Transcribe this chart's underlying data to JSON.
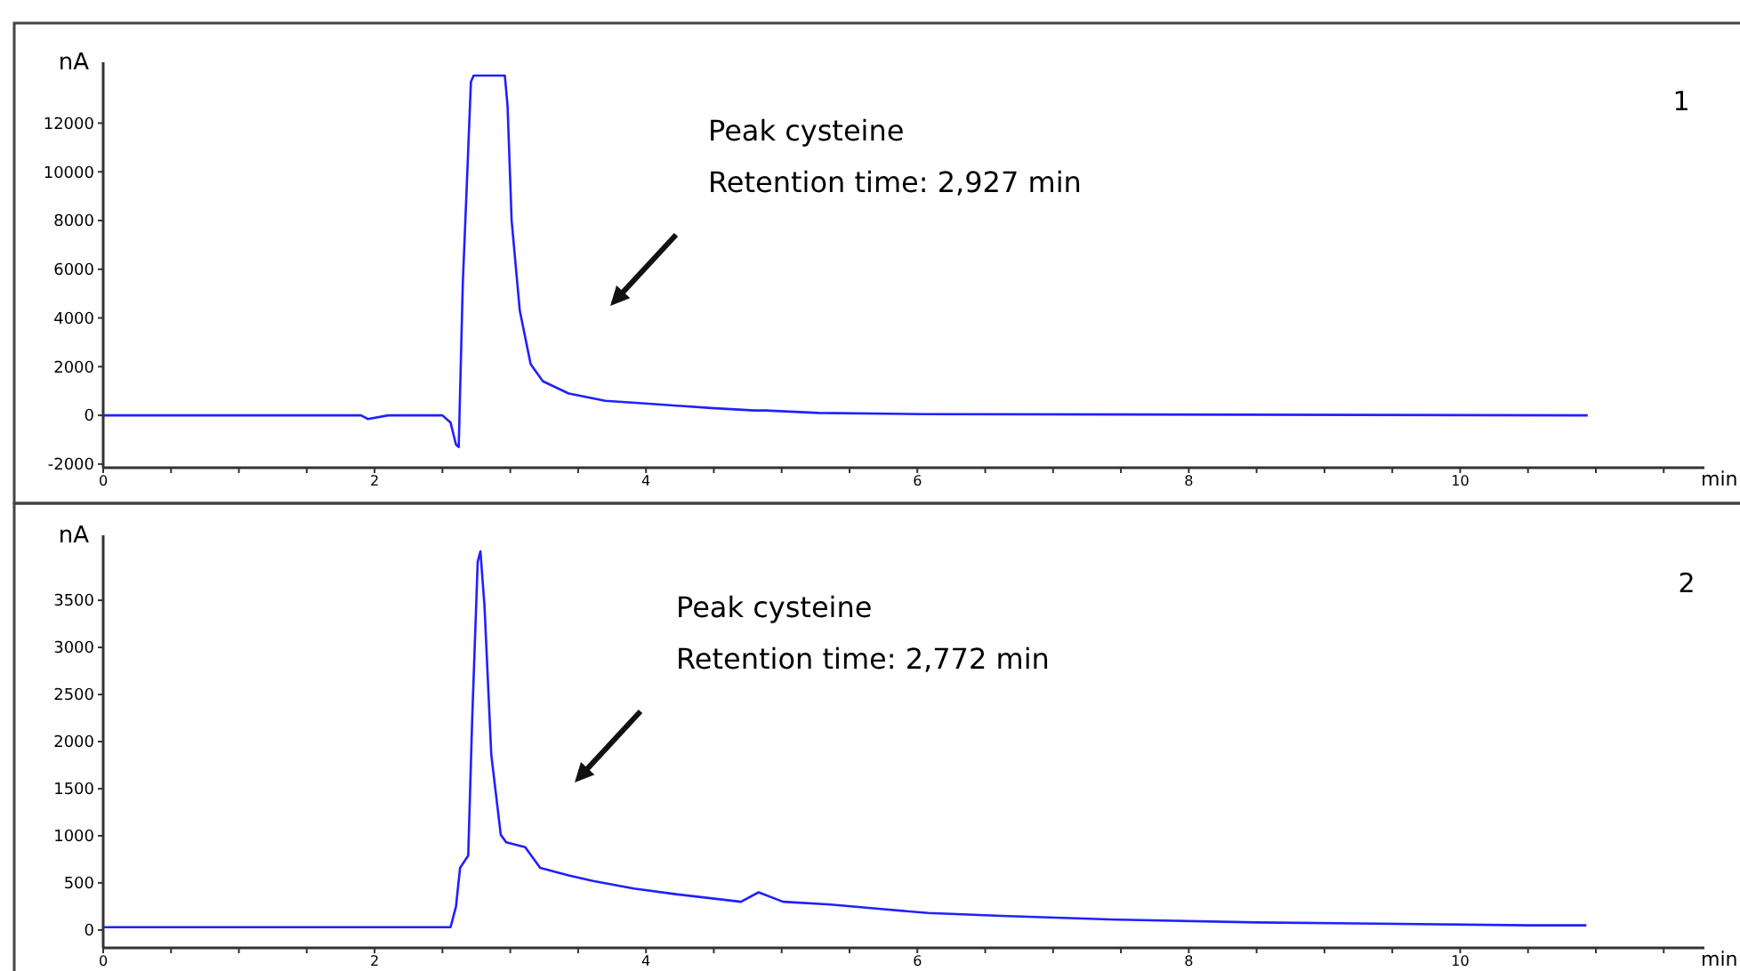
{
  "chart_data": [
    {
      "type": "line",
      "xlabel": "min",
      "ylabel": "nA",
      "annotations": [
        "1",
        "Peak cysteine",
        "Retention time: 2,927 min"
      ],
      "xlim": [
        0,
        11.8
      ],
      "xticks": [
        0,
        {
          "value": 0.5,
          "label": null
        },
        2,
        {
          "value": 1,
          "label": null
        },
        {
          "value": 1.5,
          "label": null
        },
        {
          "value": 2.5,
          "label": null
        },
        {
          "value": 3,
          "label": null
        },
        {
          "value": 3.5,
          "label": null
        },
        4,
        {
          "value": 4.5,
          "label": null
        },
        {
          "value": 5,
          "label": null
        },
        {
          "value": 5.5,
          "label": null
        },
        6,
        {
          "value": 6.5,
          "label": null
        },
        {
          "value": 7,
          "label": null
        },
        {
          "value": 7.5,
          "label": null
        },
        8,
        {
          "value": 8.5,
          "label": null
        },
        {
          "value": 9,
          "label": null
        },
        {
          "value": 9.5,
          "label": null
        },
        10,
        {
          "value": 10.5,
          "label": null
        },
        {
          "value": 11,
          "label": null
        },
        {
          "value": 11.5,
          "label": null
        }
      ],
      "ylim": [
        -2150,
        14500
      ],
      "yticks": [
        -2000,
        0,
        2000,
        4000,
        6000,
        8000,
        10000,
        12000
      ],
      "grid": false,
      "marker": "none",
      "line_style": "solid",
      "series": [
        {
          "color": "#2020ff",
          "x": [
            0,
            1.9,
            1.95,
            2.1,
            2.5,
            2.56,
            2.6,
            2.62,
            2.65,
            2.69,
            2.71,
            2.73,
            2.96,
            2.98,
            3.01,
            3.07,
            3.15,
            3.24,
            3.43,
            3.7,
            4.09,
            4.48,
            4.8,
            4.88,
            5.27,
            6.06,
            10.94
          ],
          "values": [
            0,
            0,
            -150,
            0,
            0,
            -300,
            -1200,
            -1300,
            5400,
            10900,
            13700,
            13950,
            13950,
            12700,
            8000,
            4300,
            2100,
            1400,
            900,
            600,
            450,
            300,
            200,
            200,
            100,
            50,
            0
          ]
        }
      ]
    },
    {
      "type": "line",
      "xlabel": "min",
      "ylabel": "nA",
      "annotations": [
        "2",
        "Peak cysteine",
        "Retention time: 2,772 min"
      ],
      "xlim": [
        0,
        11.8
      ],
      "xticks": [
        0,
        {
          "value": 0.5,
          "label": null
        },
        2,
        {
          "value": 1,
          "label": null
        },
        {
          "value": 1.5,
          "label": null
        },
        {
          "value": 2.5,
          "label": null
        },
        {
          "value": 3,
          "label": null
        },
        {
          "value": 3.5,
          "label": null
        },
        4,
        {
          "value": 4.5,
          "label": null
        },
        {
          "value": 5,
          "label": null
        },
        {
          "value": 5.5,
          "label": null
        },
        6,
        {
          "value": 6.5,
          "label": null
        },
        {
          "value": 7,
          "label": null
        },
        {
          "value": 7.5,
          "label": null
        },
        8,
        {
          "value": 8.5,
          "label": null
        },
        {
          "value": 9,
          "label": null
        },
        {
          "value": 9.5,
          "label": null
        },
        10,
        {
          "value": 10.5,
          "label": null
        },
        {
          "value": 11,
          "label": null
        },
        {
          "value": 11.5,
          "label": null
        }
      ],
      "ylim": [
        -190,
        4190
      ],
      "yticks": [
        0,
        500,
        1000,
        1500,
        2000,
        2500,
        3000,
        3500
      ],
      "grid": false,
      "marker": "none",
      "line_style": "solid",
      "series": [
        {
          "color": "#2020ff",
          "x": [
            0,
            2.56,
            2.6,
            2.63,
            2.69,
            2.72,
            2.76,
            2.78,
            2.81,
            2.86,
            2.93,
            2.97,
            3.11,
            3.22,
            3.43,
            3.61,
            3.91,
            4.22,
            4.7,
            4.83,
            5.01,
            5.36,
            5.75,
            6.08,
            6.62,
            7.47,
            8.5,
            10.51,
            10.93
          ],
          "values": [
            30,
            30,
            250,
            660,
            790,
            2270,
            3910,
            4020,
            3440,
            1860,
            1010,
            930,
            880,
            660,
            580,
            520,
            440,
            380,
            300,
            400,
            300,
            270,
            220,
            180,
            150,
            110,
            80,
            50,
            50
          ]
        }
      ]
    }
  ]
}
